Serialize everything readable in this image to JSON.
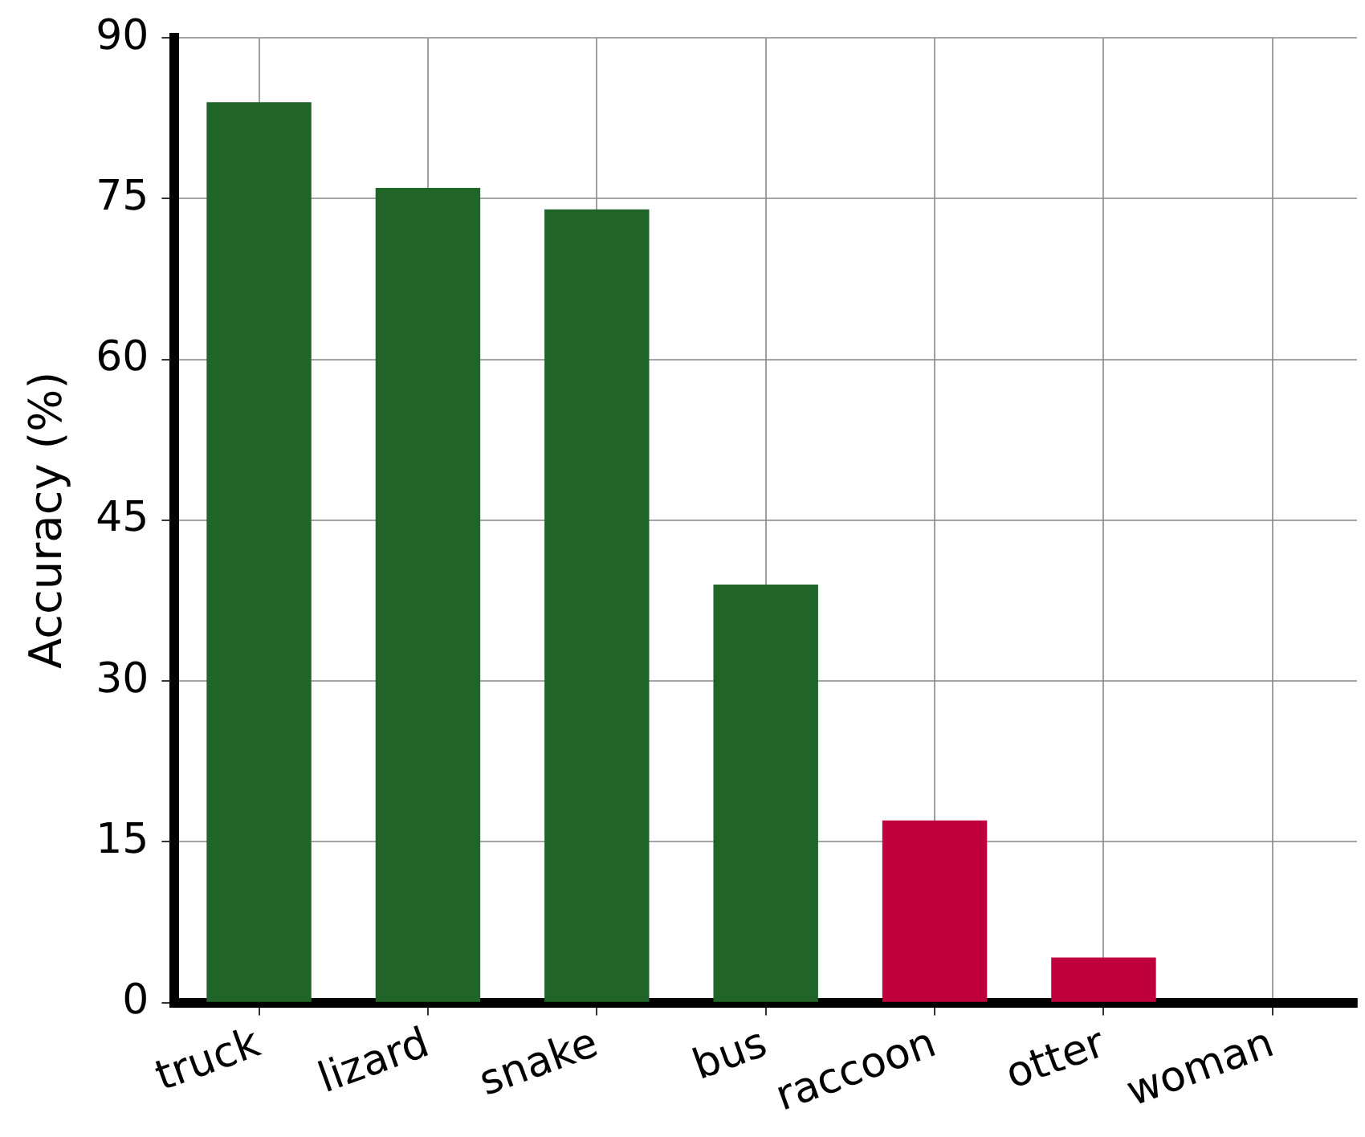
{
  "chart_data": {
    "type": "bar",
    "ylabel": "Accuracy (%)",
    "categories": [
      "truck",
      "lizard",
      "snake",
      "bus",
      "raccoon",
      "otter",
      "woman"
    ],
    "values": [
      84,
      76,
      74,
      39,
      17,
      4.2,
      0
    ],
    "colors": [
      "#206428",
      "#206428",
      "#206428",
      "#206428",
      "#c0003c",
      "#c0003c",
      "#c0003c"
    ],
    "ylim": [
      0,
      90
    ],
    "yticks": [
      0,
      15,
      30,
      45,
      60,
      75,
      90
    ],
    "grid": true,
    "legend": false
  }
}
